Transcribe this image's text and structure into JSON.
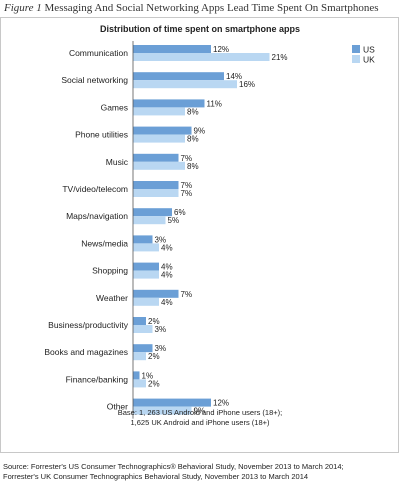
{
  "figure": {
    "number": "Figure 1",
    "title": "Messaging And Social Networking Apps Lead Time Spent On Smartphones"
  },
  "chart_data": {
    "type": "bar",
    "orientation": "horizontal",
    "title": "Distribution of time spent on smartphone apps",
    "categories": [
      "Communication",
      "Social networking",
      "Games",
      "Phone utilities",
      "Music",
      "TV/video/telecom",
      "Maps/navigation",
      "News/media",
      "Shopping",
      "Weather",
      "Business/productivity",
      "Books and magazines",
      "Finance/banking",
      "Other"
    ],
    "series": [
      {
        "name": "US",
        "color": "#6b9fd6",
        "values": [
          12,
          14,
          11,
          9,
          7,
          7,
          6,
          3,
          4,
          7,
          2,
          3,
          1,
          12
        ]
      },
      {
        "name": "UK",
        "color": "#b9d7f2",
        "values": [
          21,
          16,
          8,
          8,
          8,
          7,
          5,
          4,
          4,
          4,
          3,
          2,
          2,
          9
        ]
      }
    ],
    "value_suffix": "%",
    "legend_position": "top-right",
    "grid": false
  },
  "notes": {
    "base_line1": "Base: 1, 263 US Android and iPhone users (18+);",
    "base_line2": "1,625 UK Android and iPhone users (18+)"
  },
  "source": {
    "line1": "Source: Forrester's US Consumer Technographics® Behavioral Study, November 2013 to March 2014;",
    "line2": "Forrester's UK Consumer Technographics Behavioral Study, November 2013 to March 2014"
  }
}
